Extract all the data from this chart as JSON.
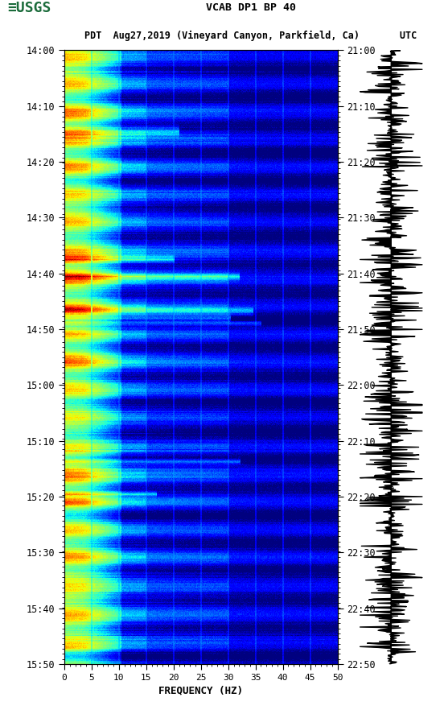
{
  "title_line1": "VCAB DP1 BP 40",
  "title_line2": "PDT  Aug27,2019 (Vineyard Canyon, Parkfield, Ca)       UTC",
  "left_time_labels": [
    "14:00",
    "14:10",
    "14:20",
    "14:30",
    "14:40",
    "14:50",
    "15:00",
    "15:10",
    "15:20",
    "15:30",
    "15:40",
    "15:50"
  ],
  "right_time_labels": [
    "21:00",
    "21:10",
    "21:20",
    "21:30",
    "21:40",
    "21:50",
    "22:00",
    "22:10",
    "22:20",
    "22:30",
    "22:40",
    "22:50"
  ],
  "freq_ticks": [
    0,
    5,
    10,
    15,
    20,
    25,
    30,
    35,
    40,
    45,
    50
  ],
  "xlabel": "FREQUENCY (HZ)",
  "freq_min": 0,
  "freq_max": 50,
  "n_time_steps": 720,
  "n_freq_bins": 500,
  "background_color": "#ffffff",
  "spectrogram_cmap": "jet",
  "waveform_color": "#000000",
  "title_fontsize": 10,
  "tick_fontsize": 9,
  "usgs_logo_color": "#1a6b3a",
  "grid_color": "#8888aa",
  "grid_freq_positions": [
    5,
    10,
    15,
    20,
    25,
    30,
    35,
    40,
    45
  ]
}
